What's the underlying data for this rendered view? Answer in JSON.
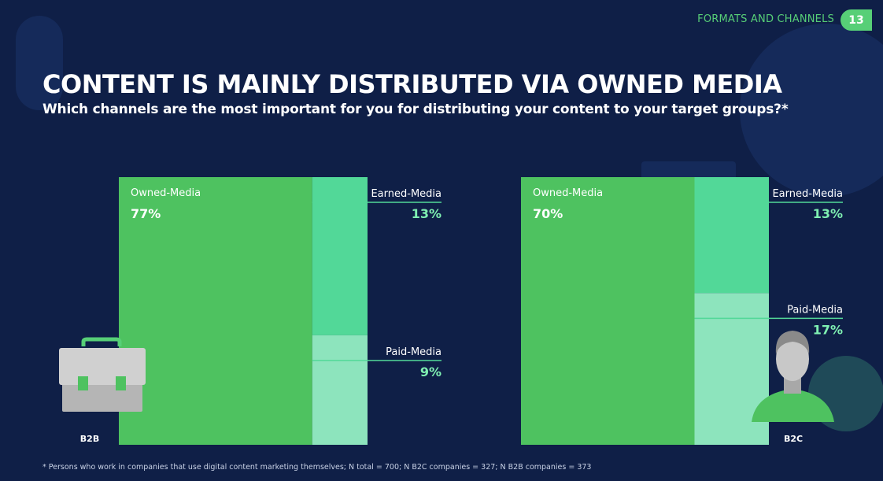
{
  "header": {
    "section_label": "FORMATS AND CHANNELS",
    "page_number": "13"
  },
  "title": "CONTENT IS MAINLY DISTRIBUTED VIA OWNED MEDIA",
  "subtitle": "Which channels are the most important for you for distributing your content to your target groups?*",
  "footnote": "* Persons who work in companies that use digital content marketing themselves; N total = 700; N B2C companies = 327; N B2B companies = 373",
  "colors": {
    "background": "#0f1f47",
    "owned": "#4ec260",
    "earned": "#52d898",
    "paid": "#8de4bd",
    "accent_text": "#7ff0b2"
  },
  "icons": [
    "briefcase-icon",
    "person-icon"
  ],
  "chart_data": [
    {
      "type": "treemap",
      "group_label": "B2B",
      "categories": [
        "Owned-Media",
        "Earned-Media",
        "Paid-Media"
      ],
      "values": [
        77,
        13,
        9
      ],
      "value_labels": [
        "77%",
        "13%",
        "9%"
      ]
    },
    {
      "type": "treemap",
      "group_label": "B2C",
      "categories": [
        "Owned-Media",
        "Earned-Media",
        "Paid-Media"
      ],
      "values": [
        70,
        13,
        17
      ],
      "value_labels": [
        "70%",
        "13%",
        "17%"
      ]
    }
  ]
}
